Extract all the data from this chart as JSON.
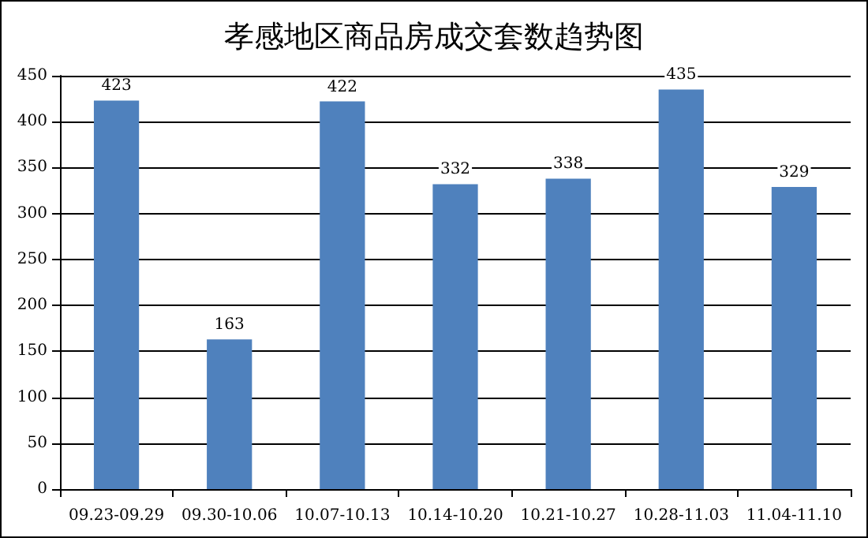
{
  "chart_data": {
    "type": "bar",
    "title": "孝感地区商品房成交套数趋势图",
    "categories": [
      "09.23-09.29",
      "09.30-10.06",
      "10.07-10.13",
      "10.14-10.20",
      "10.21-10.27",
      "10.28-11.03",
      "11.04-11.10"
    ],
    "values": [
      423,
      163,
      422,
      332,
      338,
      435,
      329
    ],
    "color": "#4f81bd",
    "data_labels": true,
    "ylim": [
      0,
      450
    ],
    "yticks": [
      0,
      50,
      100,
      150,
      200,
      250,
      300,
      350,
      400,
      450
    ],
    "grid": "y"
  }
}
